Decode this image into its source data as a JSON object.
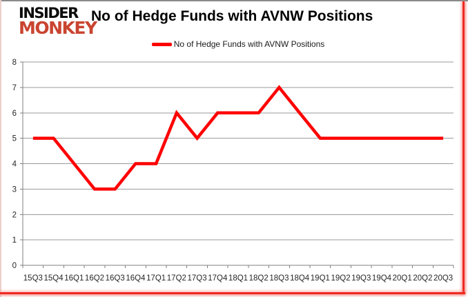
{
  "logo": {
    "line1": "INSIDER",
    "line2": "MONKEY",
    "line1_color": "#0d0d0d",
    "line2_color": "#c94430"
  },
  "header": {
    "title": "No of Hedge Funds with AVNW Positions"
  },
  "legend": {
    "label": "No of Hedge Funds with AVNW Positions",
    "swatch_color": "#fe0000"
  },
  "colors": {
    "series_red": "#fe0000",
    "gridline": "#9a9a9a",
    "axis": "#7f7f7f",
    "tick_label": "#262626",
    "border_red": "#ee2a22",
    "border_top_gray": "#8a8a8a"
  },
  "chart_data": {
    "type": "line",
    "title": "No of Hedge Funds with AVNW Positions",
    "categories": [
      "15Q3",
      "15Q4",
      "16Q1",
      "16Q2",
      "16Q3",
      "16Q4",
      "17Q1",
      "17Q2",
      "17Q3",
      "17Q4",
      "18Q1",
      "18Q2",
      "18Q3",
      "18Q4",
      "19Q1",
      "19Q2",
      "19Q3",
      "19Q4",
      "20Q1",
      "20Q2",
      "20Q3"
    ],
    "series": [
      {
        "name": "No of Hedge Funds with AVNW Positions",
        "color": "#fe0000",
        "values": [
          5,
          5,
          4,
          3,
          3,
          4,
          4,
          6,
          5,
          6,
          6,
          6,
          7,
          6,
          5,
          5,
          5,
          5,
          5,
          5,
          5
        ]
      }
    ],
    "xlabel": "",
    "ylabel": "",
    "ylim": [
      0,
      8
    ],
    "yticks": [
      0,
      1,
      2,
      3,
      4,
      5,
      6,
      7,
      8
    ],
    "grid": "horizontal",
    "legend_position": "top"
  }
}
